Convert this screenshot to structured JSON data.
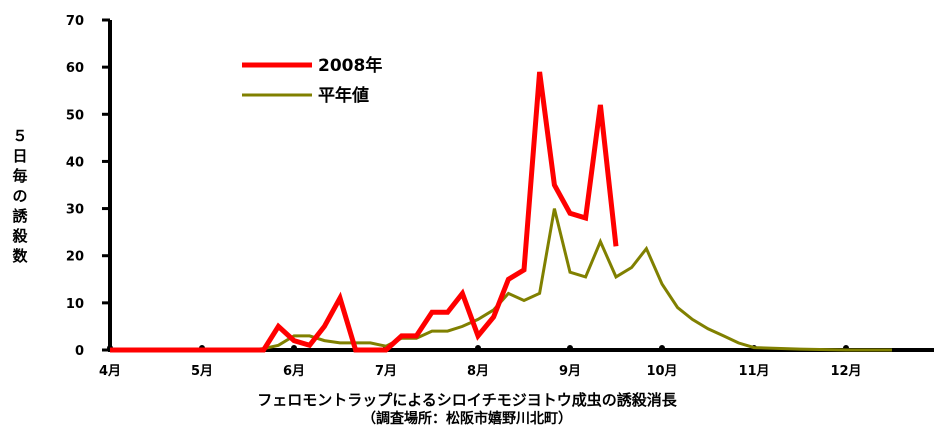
{
  "chart_data": {
    "type": "line",
    "title": "",
    "xlabel": "",
    "ylabel": "５日毎の誘殺数",
    "ylim": [
      0,
      70
    ],
    "yticks": [
      "0",
      "10",
      "20",
      "30",
      "40",
      "50",
      "60",
      "70"
    ],
    "months": [
      "4月",
      "5月",
      "6月",
      "7月",
      "8月",
      "9月",
      "10月",
      "11月",
      "12月"
    ],
    "x_unit_note": "x values are months from Apr 1 (0 = 4月, 1 = 5月, ...)",
    "series": [
      {
        "name": "2008年",
        "color": "#ff0000",
        "x": [
          0.0,
          0.5,
          1.0,
          1.5,
          1.67,
          1.83,
          2.0,
          2.17,
          2.33,
          2.5,
          2.67,
          2.83,
          3.0,
          3.17,
          3.33,
          3.5,
          3.67,
          3.83,
          4.0,
          4.17,
          4.33,
          4.5,
          4.67,
          4.83,
          5.0,
          5.17,
          5.33,
          5.5
        ],
        "values": [
          0,
          0,
          0,
          0,
          0,
          5,
          2,
          1,
          5,
          11,
          0,
          0,
          0,
          3,
          3,
          8,
          8,
          12,
          3,
          7,
          15,
          17,
          59,
          35,
          29,
          28,
          52,
          22
        ]
      },
      {
        "name": "平年値",
        "color": "#808000",
        "x": [
          0.0,
          0.5,
          1.0,
          1.5,
          1.67,
          1.83,
          2.0,
          2.17,
          2.33,
          2.5,
          2.67,
          2.83,
          3.0,
          3.17,
          3.33,
          3.5,
          3.67,
          3.83,
          4.0,
          4.17,
          4.33,
          4.5,
          4.67,
          4.83,
          5.0,
          5.17,
          5.33,
          5.5,
          5.67,
          5.83,
          6.0,
          6.17,
          6.33,
          6.5,
          6.67,
          6.83,
          7.0,
          7.5,
          8.0,
          8.5
        ],
        "values": [
          0,
          0,
          0,
          0,
          0.3,
          1,
          3,
          3,
          2,
          1.5,
          1.5,
          1.5,
          0.8,
          2.5,
          2.5,
          4,
          4,
          5,
          6.5,
          8.5,
          12,
          10.5,
          12,
          30,
          16.5,
          15.5,
          23,
          15.5,
          17.5,
          21.5,
          14,
          9,
          6.5,
          4.5,
          3,
          1.5,
          0.5,
          0.2,
          0,
          0
        ]
      }
    ],
    "legend_position": "top-center",
    "grid": false
  },
  "caption": {
    "line1": "フェロモントラップによるシロイチモジヨトウ成虫の誘殺消長",
    "line2": "（調査場所：松阪市嬉野川北町）"
  }
}
